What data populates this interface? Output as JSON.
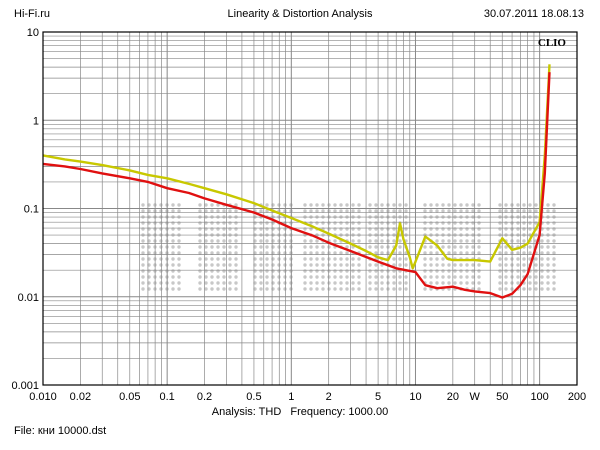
{
  "header": {
    "left": "Hi-Fi.ru",
    "center": "Linearity & Distortion Analysis",
    "right": "30.07.2011 18.08.13"
  },
  "brand": "CLIO",
  "footer": {
    "analysis": "Analysis: THD",
    "frequency": "Frequency: 1000.00",
    "file": "File: кни 10000.dst"
  },
  "colors": {
    "red_series": "#e01010",
    "yellow_series": "#c8c800",
    "grid": "#888888",
    "watermark": "#c8c8c8"
  },
  "chart_data": {
    "type": "line",
    "title": "Linearity & Distortion Analysis",
    "xscale": "log",
    "yscale": "log",
    "xlim": [
      0.01,
      200
    ],
    "ylim": [
      0.001,
      10
    ],
    "grid": true,
    "x_tick_labels": [
      "0.010",
      "0.02",
      "0.05",
      "0.1",
      "0.2",
      "0.5",
      "1",
      "2",
      "5",
      "10",
      "20",
      "W",
      "50",
      "100",
      "200"
    ],
    "x_tick_values": [
      0.01,
      0.02,
      0.05,
      0.1,
      0.2,
      0.5,
      1,
      2,
      5,
      10,
      20,
      30,
      50,
      100,
      200
    ],
    "y_tick_labels": [
      "10",
      "1",
      "0.1",
      "0.01",
      "0.001"
    ],
    "y_tick_values": [
      10,
      1,
      0.1,
      0.01,
      0.001
    ],
    "series": [
      {
        "color": "#c8c800",
        "points": [
          [
            0.01,
            0.4
          ],
          [
            0.015,
            0.36
          ],
          [
            0.02,
            0.34
          ],
          [
            0.03,
            0.31
          ],
          [
            0.05,
            0.27
          ],
          [
            0.07,
            0.24
          ],
          [
            0.1,
            0.22
          ],
          [
            0.15,
            0.19
          ],
          [
            0.2,
            0.17
          ],
          [
            0.3,
            0.145
          ],
          [
            0.5,
            0.115
          ],
          [
            0.7,
            0.095
          ],
          [
            1,
            0.078
          ],
          [
            1.5,
            0.062
          ],
          [
            2,
            0.052
          ],
          [
            3,
            0.04
          ],
          [
            4,
            0.033
          ],
          [
            5,
            0.028
          ],
          [
            6,
            0.026
          ],
          [
            7,
            0.038
          ],
          [
            7.5,
            0.068
          ],
          [
            8,
            0.045
          ],
          [
            9,
            0.028
          ],
          [
            9.5,
            0.021
          ],
          [
            10,
            0.025
          ],
          [
            12,
            0.048
          ],
          [
            15,
            0.038
          ],
          [
            18,
            0.027
          ],
          [
            20,
            0.026
          ],
          [
            25,
            0.026
          ],
          [
            30,
            0.026
          ],
          [
            40,
            0.025
          ],
          [
            50,
            0.046
          ],
          [
            60,
            0.034
          ],
          [
            70,
            0.036
          ],
          [
            80,
            0.04
          ],
          [
            100,
            0.07
          ],
          [
            110,
            0.4
          ],
          [
            120,
            4.3
          ]
        ]
      },
      {
        "color": "#e01010",
        "points": [
          [
            0.01,
            0.32
          ],
          [
            0.015,
            0.3
          ],
          [
            0.02,
            0.28
          ],
          [
            0.03,
            0.25
          ],
          [
            0.05,
            0.22
          ],
          [
            0.07,
            0.2
          ],
          [
            0.1,
            0.17
          ],
          [
            0.15,
            0.15
          ],
          [
            0.2,
            0.13
          ],
          [
            0.3,
            0.11
          ],
          [
            0.5,
            0.09
          ],
          [
            0.7,
            0.075
          ],
          [
            1,
            0.06
          ],
          [
            1.5,
            0.049
          ],
          [
            2,
            0.041
          ],
          [
            3,
            0.033
          ],
          [
            5,
            0.025
          ],
          [
            7,
            0.021
          ],
          [
            10,
            0.019
          ],
          [
            12,
            0.0135
          ],
          [
            15,
            0.0125
          ],
          [
            20,
            0.013
          ],
          [
            25,
            0.012
          ],
          [
            30,
            0.0115
          ],
          [
            40,
            0.011
          ],
          [
            50,
            0.0098
          ],
          [
            60,
            0.0108
          ],
          [
            70,
            0.0135
          ],
          [
            80,
            0.018
          ],
          [
            100,
            0.05
          ],
          [
            110,
            0.25
          ],
          [
            120,
            3.5
          ]
        ]
      }
    ]
  }
}
